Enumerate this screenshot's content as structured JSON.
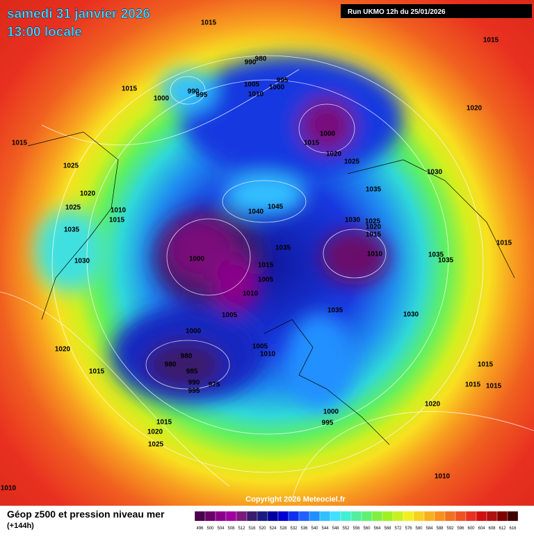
{
  "header": {
    "title": "samedi 31 janvier 2026",
    "subtitle": "13:00 locale",
    "run": "Run UKMO 12h du 25/01/2026"
  },
  "isobar_labels": [
    1015,
    980,
    990,
    995,
    1005,
    1000,
    1010,
    990,
    995,
    1000,
    1015,
    1015,
    1020,
    1000,
    1015,
    1020,
    1025,
    1030,
    1035,
    1015,
    1025,
    1020,
    1025,
    1010,
    1015,
    1035,
    1040,
    1045,
    1030,
    1025,
    1020,
    1015,
    1010,
    1035,
    1000,
    1015,
    1005,
    1010,
    1005,
    1015,
    1035,
    1035,
    1030,
    1035,
    1030,
    1000,
    1005,
    1010,
    1020,
    980,
    980,
    985,
    990,
    975,
    995,
    1015,
    1015,
    1015,
    1015,
    1020,
    1000,
    995,
    1015,
    1020,
    1025,
    1010,
    1010
  ],
  "copyright": "Copyright 2026 Meteociel.fr",
  "legend": {
    "title": "Géop z500 et pression niveau mer",
    "subtitle": "(+144h)",
    "scale": {
      "labels": [
        496,
        500,
        504,
        508,
        512,
        516,
        520,
        524,
        528,
        532,
        536,
        540,
        544,
        548,
        552,
        556,
        560,
        564,
        568,
        572,
        576,
        580,
        584,
        588,
        592,
        596,
        600,
        604,
        608,
        612,
        616
      ],
      "colors": [
        "#4a004a",
        "#6a006a",
        "#8a008a",
        "#a000a0",
        "#7a1a7a",
        "#3a1a6a",
        "#1a1a80",
        "#0000a0",
        "#0000d0",
        "#1030f0",
        "#2060ff",
        "#2090ff",
        "#30c0ff",
        "#40e0ff",
        "#40f0d0",
        "#50f0a0",
        "#60f070",
        "#80f040",
        "#a0f020",
        "#c8f020",
        "#f0f020",
        "#f8d020",
        "#f8b020",
        "#f89020",
        "#f07020",
        "#f05020",
        "#e83020",
        "#d01010",
        "#b01010",
        "#800000",
        "#400000"
      ]
    }
  }
}
